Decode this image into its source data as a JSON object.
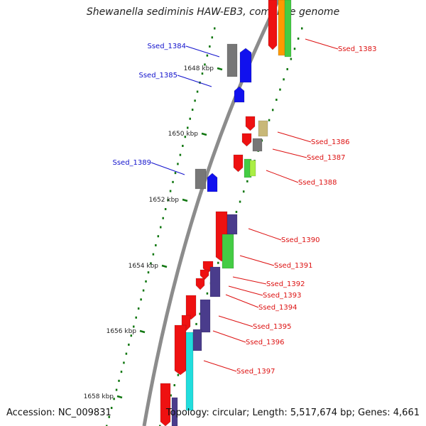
{
  "title": "Shewanella sediminis HAW-EB3, complete genome",
  "footer": {
    "accession": "Accession: NC_009831",
    "topology": "Topology: circular; Length: 5,517,674 bp; Genes: 4,661"
  },
  "colors": {
    "backbone": "#8c8c8c",
    "forward": "#ee1111",
    "reverse": "#1111ee",
    "gray": "#777777",
    "tan": "#c8b878",
    "green": "#44cc44",
    "lime": "#aaee44",
    "orange": "#ff9900",
    "purple": "#4a3c8c",
    "cyan": "#22dddd",
    "tick": "#117711",
    "label_right": "#dd1111",
    "label_left": "#1111cc"
  },
  "kbp_ticks": [
    {
      "kbp": 1648,
      "label": "1648 kbp"
    },
    {
      "kbp": 1650,
      "label": "1650 kbp"
    },
    {
      "kbp": 1652,
      "label": "1652 kbp"
    },
    {
      "kbp": 1654,
      "label": "1654 kbp"
    },
    {
      "kbp": 1656,
      "label": "1656 kbp"
    },
    {
      "kbp": 1658,
      "label": "1658 kbp"
    }
  ],
  "gene_labels": [
    {
      "text": "Ssed_1383",
      "side": "right"
    },
    {
      "text": "Ssed_1384",
      "side": "left"
    },
    {
      "text": "Ssed_1385",
      "side": "left"
    },
    {
      "text": "Ssed_1386",
      "side": "right"
    },
    {
      "text": "Ssed_1387",
      "side": "right"
    },
    {
      "text": "Ssed_1388",
      "side": "right"
    },
    {
      "text": "Ssed_1389",
      "side": "left"
    },
    {
      "text": "Ssed_1390",
      "side": "right"
    },
    {
      "text": "Ssed_1391",
      "side": "right"
    },
    {
      "text": "Ssed_1392",
      "side": "right"
    },
    {
      "text": "Ssed_1393",
      "side": "right"
    },
    {
      "text": "Ssed_1394",
      "side": "right"
    },
    {
      "text": "Ssed_1395",
      "side": "right"
    },
    {
      "text": "Ssed_1396",
      "side": "right"
    },
    {
      "text": "Ssed_1397",
      "side": "right"
    }
  ]
}
